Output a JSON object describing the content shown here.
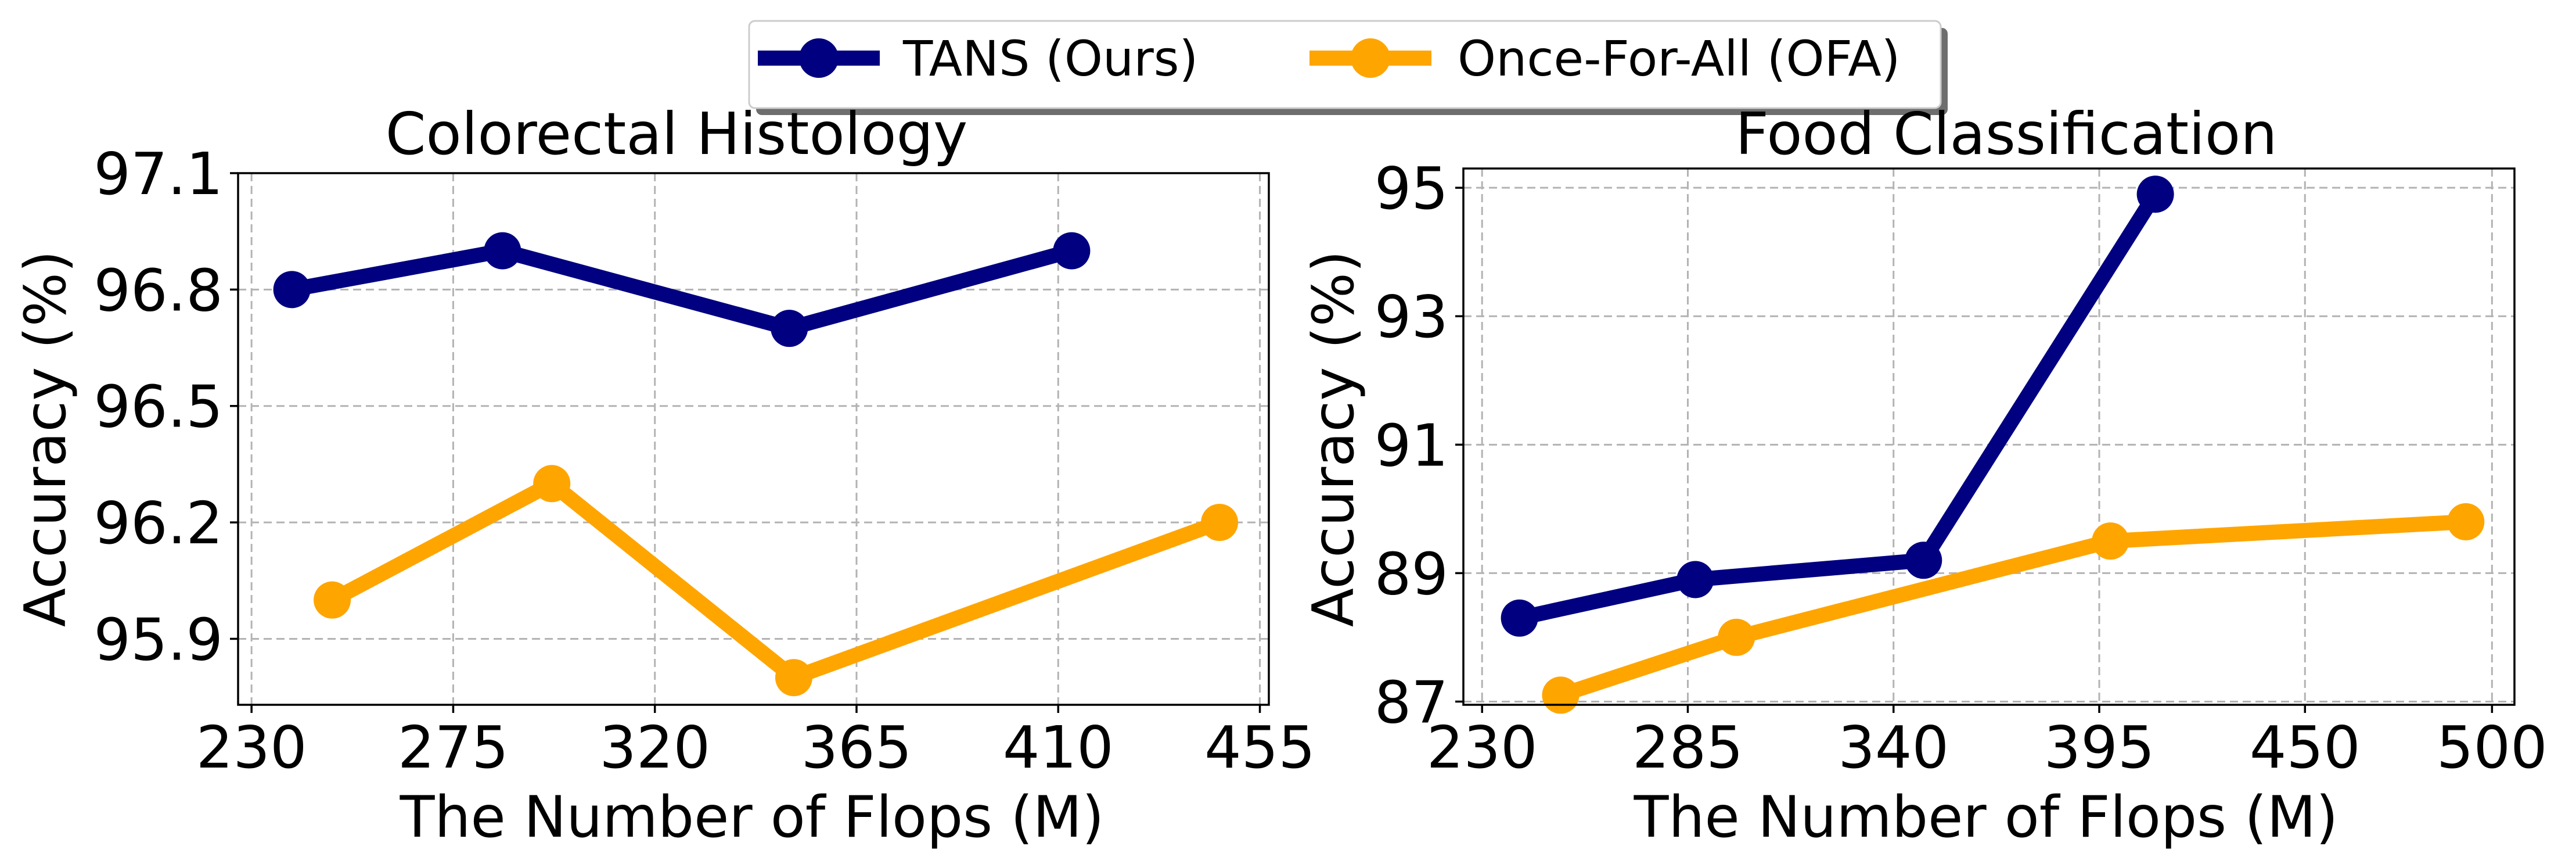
{
  "legend": {
    "entries": [
      {
        "label": "TANS (Ours)",
        "color": "#000080"
      },
      {
        "label": "Once-For-All (OFA)",
        "color": "#FFA500"
      }
    ]
  },
  "chart_data": [
    {
      "type": "line",
      "title": "Colorectal Histology",
      "xlabel": "The Number of Flops (M)",
      "ylabel": "Accuracy (%)",
      "xlim": [
        227,
        457
      ],
      "ylim": [
        95.73,
        97.1
      ],
      "xticks": [
        230,
        275,
        320,
        365,
        410,
        455
      ],
      "yticks": [
        95.9,
        96.2,
        96.5,
        96.8,
        97.1
      ],
      "ytick_labels": [
        "95.9",
        "96.2",
        "96.5",
        "96.8",
        "97.1"
      ],
      "grid": true,
      "series": [
        {
          "name": "TANS (Ours)",
          "color": "#000080",
          "x": [
            239,
            286,
            350,
            413
          ],
          "y": [
            96.8,
            96.9,
            96.7,
            96.9
          ]
        },
        {
          "name": "Once-For-All (OFA)",
          "color": "#FFA500",
          "x": [
            248,
            297,
            351,
            446
          ],
          "y": [
            96.0,
            96.3,
            95.8,
            96.2
          ]
        }
      ]
    },
    {
      "type": "line",
      "title": "Food Classification",
      "xlabel": "The Number of Flops (M)",
      "ylabel": "Accuracy (%)",
      "xlim": [
        225,
        506
      ],
      "ylim": [
        86.95,
        95.3
      ],
      "xticks": [
        230,
        285,
        340,
        395,
        450,
        500
      ],
      "yticks": [
        87,
        89,
        91,
        93,
        95
      ],
      "ytick_labels": [
        "87",
        "89",
        "91",
        "93",
        "95"
      ],
      "grid": true,
      "series": [
        {
          "name": "TANS (Ours)",
          "color": "#000080",
          "x": [
            240,
            287,
            348,
            410
          ],
          "y": [
            88.3,
            88.9,
            89.2,
            94.9
          ]
        },
        {
          "name": "Once-For-All (OFA)",
          "color": "#FFA500",
          "x": [
            251,
            298,
            398,
            493
          ],
          "y": [
            87.1,
            88.0,
            89.5,
            89.8
          ]
        }
      ]
    }
  ]
}
